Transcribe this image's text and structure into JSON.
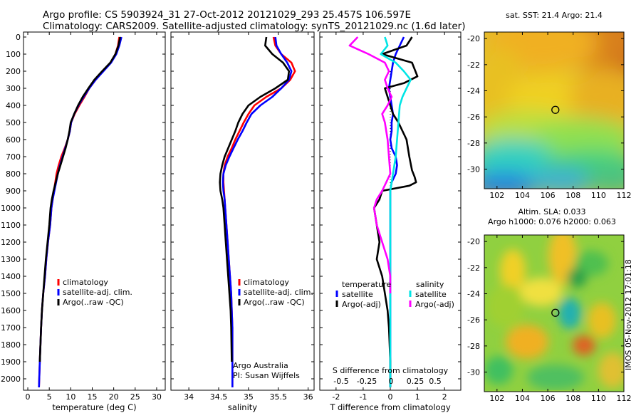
{
  "header": {
    "title_line1": "Argo profile: CS 5903924_31 27-Oct-2012 20121029_293 25.457S 106.597E",
    "title_line2": "Climatology: CARS2009. Satellite-adjusted climatology: synTS_20121029.nc (1.6d later)"
  },
  "colors": {
    "climatology": "#ff0000",
    "satellite": "#0000ff",
    "argo": "#000000",
    "sal_satellite": "#00e5e5",
    "sal_argo": "#ff00ff"
  },
  "depth_ticks": [
    0,
    100,
    200,
    300,
    400,
    500,
    600,
    700,
    800,
    900,
    1000,
    1100,
    1200,
    1300,
    1400,
    1500,
    1600,
    1700,
    1800,
    1900,
    2000
  ],
  "chart_data": [
    {
      "type": "line",
      "xlabel": "temperature (deg C)",
      "ylabel": "",
      "xlim": [
        -1,
        32
      ],
      "ylim": [
        2080,
        0
      ],
      "xticks": [
        0,
        5,
        10,
        15,
        20,
        25,
        30
      ],
      "legend": [
        "climatology",
        "satellite-adj. clim.",
        "Argo(..raw -QC)"
      ],
      "series": [
        {
          "name": "climatology",
          "x": [
            21.3,
            21.0,
            20.4,
            19.3,
            17.5,
            15.8,
            14.3,
            13.2,
            12.0,
            10.9,
            10.1,
            9.8,
            9.3,
            8.6,
            7.8,
            7.2,
            6.7,
            6.4,
            6.1,
            5.8,
            5.5,
            5.2,
            4.7,
            4.3,
            4.0,
            3.6,
            3.3,
            3.1,
            2.8,
            2.6
          ],
          "y": [
            0,
            50,
            100,
            150,
            200,
            250,
            300,
            350,
            400,
            450,
            500,
            550,
            600,
            650,
            700,
            750,
            800,
            850,
            900,
            950,
            1000,
            1100,
            1200,
            1300,
            1400,
            1500,
            1600,
            1700,
            1900,
            2050
          ]
        },
        {
          "name": "satellite-adj. clim.",
          "x": [
            21.8,
            21.3,
            20.6,
            19.4,
            17.6,
            15.8,
            14.3,
            13.0,
            11.8,
            10.8,
            10.1,
            9.8,
            9.3,
            8.7,
            8.1,
            7.5,
            7.0,
            6.6,
            6.2,
            5.8,
            5.5,
            5.2,
            4.7,
            4.3,
            4.0,
            3.6,
            3.3,
            3.1,
            2.8,
            2.6
          ],
          "y": [
            0,
            50,
            100,
            150,
            200,
            250,
            300,
            350,
            400,
            450,
            500,
            550,
            600,
            650,
            700,
            750,
            800,
            850,
            900,
            950,
            1000,
            1100,
            1200,
            1300,
            1400,
            1500,
            1600,
            1700,
            1900,
            2050
          ]
        },
        {
          "name": "Argo(..raw -QC)",
          "x": [
            21.5,
            21.1,
            20.4,
            19.2,
            17.3,
            15.5,
            14.1,
            12.8,
            11.7,
            10.8,
            10.0,
            9.7,
            9.3,
            8.8,
            8.2,
            7.6,
            7.0,
            6.5,
            6.0,
            5.6,
            5.3,
            5.0,
            4.6,
            4.2,
            3.9,
            3.6,
            3.3,
            3.1,
            2.8
          ],
          "y": [
            0,
            50,
            100,
            150,
            200,
            250,
            300,
            350,
            400,
            450,
            500,
            550,
            600,
            650,
            700,
            750,
            800,
            850,
            900,
            950,
            1000,
            1100,
            1200,
            1300,
            1400,
            1500,
            1600,
            1700,
            1900
          ]
        }
      ]
    },
    {
      "type": "line",
      "xlabel": "salinity",
      "ylabel": "",
      "xlim": [
        33.7,
        36.1
      ],
      "ylim": [
        2080,
        0
      ],
      "xticks": [
        34,
        34.5,
        35,
        35.5,
        36
      ],
      "legend": [
        "climatology",
        "satellite-adj. clim.",
        "Argo(..raw -QC)"
      ],
      "annotation": [
        "Argo Australia",
        "PI: Susan Wijffels"
      ],
      "series": [
        {
          "name": "climatology",
          "x": [
            35.42,
            35.45,
            35.55,
            35.72,
            35.78,
            35.7,
            35.55,
            35.3,
            35.1,
            35.0,
            34.92,
            34.85,
            34.78,
            34.72,
            34.65,
            34.6,
            34.58,
            34.58,
            34.59,
            34.6,
            34.61,
            34.63,
            34.65,
            34.67,
            34.69,
            34.71,
            34.72,
            34.73,
            34.73,
            34.73
          ],
          "y": [
            0,
            50,
            100,
            150,
            200,
            250,
            300,
            350,
            400,
            450,
            500,
            550,
            600,
            650,
            700,
            750,
            800,
            850,
            900,
            950,
            1000,
            1100,
            1200,
            1300,
            1400,
            1500,
            1600,
            1700,
            1900,
            2050
          ]
        },
        {
          "name": "satellite-adj. clim.",
          "x": [
            35.45,
            35.47,
            35.55,
            35.65,
            35.72,
            35.68,
            35.55,
            35.4,
            35.2,
            35.05,
            34.97,
            34.9,
            34.82,
            34.75,
            34.68,
            34.62,
            34.58,
            34.57,
            34.58,
            34.6,
            34.61,
            34.63,
            34.65,
            34.67,
            34.69,
            34.71,
            34.72,
            34.73,
            34.73,
            34.73
          ],
          "y": [
            0,
            50,
            100,
            150,
            200,
            250,
            300,
            350,
            400,
            450,
            500,
            550,
            600,
            650,
            700,
            750,
            800,
            850,
            900,
            950,
            1000,
            1100,
            1200,
            1300,
            1400,
            1500,
            1600,
            1700,
            1900,
            2050
          ]
        },
        {
          "name": "Argo(..raw -QC)",
          "x": [
            35.3,
            35.28,
            35.4,
            35.58,
            35.68,
            35.66,
            35.45,
            35.2,
            35.0,
            34.9,
            34.83,
            34.78,
            34.72,
            34.66,
            34.6,
            34.56,
            34.53,
            34.52,
            34.53,
            34.56,
            34.58,
            34.6,
            34.62,
            34.64,
            34.66,
            34.68,
            34.7,
            34.71,
            34.72
          ],
          "y": [
            0,
            50,
            100,
            150,
            200,
            250,
            300,
            350,
            400,
            450,
            500,
            550,
            600,
            650,
            700,
            750,
            800,
            850,
            900,
            950,
            1000,
            1100,
            1200,
            1300,
            1400,
            1500,
            1600,
            1700,
            1900
          ]
        }
      ]
    },
    {
      "type": "line",
      "xlabel": "T difference from climatology",
      "x2label": "S difference from climatology",
      "ylabel": "",
      "xlim": [
        -2.6,
        2.6
      ],
      "ylim": [
        2080,
        0
      ],
      "xticks": [
        -2,
        -1,
        0,
        1,
        2
      ],
      "x2ticks": [
        "-0.5",
        "-0.25",
        "0",
        "0.25",
        "0.5"
      ],
      "legend_temperature_title": "temperature",
      "legend_salinity_title": "salinity",
      "legend_satellite": "satellite",
      "legend_argo": "Argo(-adj)",
      "series": [
        {
          "name": "temperature satellite",
          "x": [
            0.5,
            0.35,
            0.2,
            0.1,
            0.05,
            0.0,
            -0.05,
            0.0,
            0.05,
            0.1,
            0.05,
            0.05,
            0.0,
            0.05,
            0.2,
            0.25,
            0.2,
            0.05,
            0.0,
            0.0,
            0.0,
            0.0,
            0.0,
            0.0,
            0.0,
            0.0,
            0.0,
            0.0,
            0.0
          ],
          "y": [
            0,
            50,
            100,
            150,
            200,
            250,
            300,
            350,
            400,
            450,
            500,
            550,
            600,
            650,
            700,
            750,
            800,
            850,
            900,
            1000,
            1100,
            1200,
            1300,
            1400,
            1500,
            1600,
            1700,
            1900,
            2050
          ]
        },
        {
          "name": "temperature Argo(-adj)",
          "x": [
            0.8,
            0.6,
            -0.3,
            0.8,
            1.0,
            0.5,
            -0.2,
            -0.1,
            0.0,
            0.1,
            0.3,
            0.6,
            0.7,
            0.8,
            0.9,
            0.95,
            0.7,
            -0.3,
            -0.4,
            -0.6,
            -0.5,
            -0.4,
            -0.5,
            -0.3,
            -0.2,
            -0.1,
            -0.05,
            0.0,
            0.0
          ],
          "y": [
            0,
            50,
            100,
            150,
            230,
            270,
            300,
            350,
            400,
            450,
            500,
            600,
            700,
            780,
            820,
            850,
            870,
            900,
            950,
            1000,
            1100,
            1200,
            1300,
            1400,
            1500,
            1600,
            1700,
            1900,
            2050
          ]
        },
        {
          "name": "salinity satellite",
          "x": [
            -0.2,
            -0.1,
            -0.35,
            0.2,
            0.5,
            0.75,
            0.6,
            0.45,
            0.35,
            0.3,
            0.25,
            0.2,
            0.15,
            0.1,
            0.05,
            0.0,
            0.0,
            0.0,
            0.0,
            0.0,
            0.0,
            0.0,
            0.0
          ],
          "y": [
            0,
            50,
            100,
            150,
            200,
            250,
            300,
            350,
            400,
            500,
            600,
            700,
            750,
            800,
            850,
            900,
            1000,
            1200,
            1400,
            1600,
            1700,
            1900,
            2050
          ]
        },
        {
          "name": "salinity Argo(-adj)",
          "x": [
            -1.2,
            -1.5,
            -0.8,
            -0.2,
            -0.05,
            -0.2,
            -0.1,
            0.05,
            -0.1,
            -0.3,
            -0.2,
            -0.1,
            -0.05,
            0.0,
            -0.3,
            -0.5,
            -0.6,
            -0.5,
            -0.3,
            -0.1,
            0.0,
            0.0
          ],
          "y": [
            0,
            50,
            100,
            150,
            200,
            250,
            300,
            350,
            400,
            450,
            500,
            600,
            700,
            800,
            900,
            950,
            1000,
            1100,
            1200,
            1300,
            1400,
            1500
          ]
        }
      ]
    },
    {
      "type": "heatmap",
      "title": "sat. SST: 21.4 Argo: 21.4",
      "xlim": [
        101,
        112
      ],
      "ylim": [
        -31.5,
        -19.5
      ],
      "xticks": [
        102,
        104,
        106,
        108,
        110,
        112
      ],
      "yticks": [
        -20,
        -22,
        -24,
        -26,
        -28,
        -30
      ],
      "marker": {
        "x": 106.6,
        "y": -25.46
      }
    },
    {
      "type": "heatmap",
      "title_line1": "Altim. SLA: 0.033",
      "title_line2": "Argo h1000: 0.076 h2000: 0.063",
      "xlim": [
        101,
        112
      ],
      "ylim": [
        -31.5,
        -19.5
      ],
      "xticks": [
        102,
        104,
        106,
        108,
        110,
        112
      ],
      "yticks": [
        -20,
        -22,
        -24,
        -26,
        -28,
        -30
      ],
      "marker": {
        "x": 106.6,
        "y": -25.46
      }
    }
  ],
  "stamp": "IMOS 05-Nov-2012 17:01:18"
}
